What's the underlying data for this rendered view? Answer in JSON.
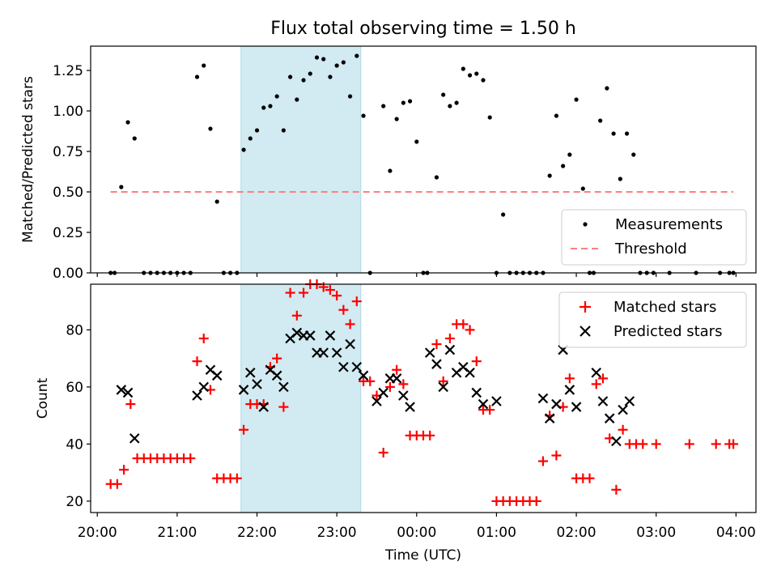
{
  "title": "Flux total observing time = 1.50 h",
  "colors": {
    "measurement": "#000000",
    "threshold": "#ff7f7f",
    "matched": "#ff0000",
    "predicted": "#000000",
    "shade": "#add8e6"
  },
  "chart_data": [
    {
      "type": "scatter",
      "ylabel": "Matched/Predicted stars",
      "ylim": [
        0,
        1.4
      ],
      "xlim": [
        "19:55",
        "04:15"
      ],
      "ytick_labels": [
        "0.00",
        "0.25",
        "0.50",
        "0.75",
        "1.00",
        "1.25"
      ],
      "ytick_values": [
        0,
        0.25,
        0.5,
        0.75,
        1.0,
        1.25
      ],
      "shaded_span": [
        "21:48",
        "23:18"
      ],
      "legend": {
        "placement": "lower-right",
        "entries": [
          "Measurements",
          "Threshold"
        ]
      },
      "threshold": {
        "name": "Threshold",
        "value": 0.5,
        "x_range": [
          "20:10",
          "03:58"
        ]
      },
      "series": [
        {
          "name": "Measurements",
          "marker": "dot",
          "points": [
            [
              "20:10",
              0
            ],
            [
              "20:13",
              0
            ],
            [
              "20:18",
              0.53
            ],
            [
              "20:23",
              0.93
            ],
            [
              "20:28",
              0.83
            ],
            [
              "20:35",
              0
            ],
            [
              "20:40",
              0
            ],
            [
              "20:45",
              0
            ],
            [
              "20:50",
              0
            ],
            [
              "20:55",
              0
            ],
            [
              "21:00",
              0
            ],
            [
              "21:05",
              0
            ],
            [
              "21:10",
              0
            ],
            [
              "21:15",
              1.21
            ],
            [
              "21:20",
              1.28
            ],
            [
              "21:25",
              0.89
            ],
            [
              "21:30",
              0.44
            ],
            [
              "21:35",
              0
            ],
            [
              "21:40",
              0
            ],
            [
              "21:45",
              0
            ],
            [
              "21:50",
              0.76
            ],
            [
              "21:55",
              0.83
            ],
            [
              "22:00",
              0.88
            ],
            [
              "22:05",
              1.02
            ],
            [
              "22:10",
              1.03
            ],
            [
              "22:15",
              1.09
            ],
            [
              "22:20",
              0.88
            ],
            [
              "22:25",
              1.21
            ],
            [
              "22:30",
              1.07
            ],
            [
              "22:35",
              1.19
            ],
            [
              "22:40",
              1.23
            ],
            [
              "22:45",
              1.33
            ],
            [
              "22:50",
              1.32
            ],
            [
              "22:55",
              1.21
            ],
            [
              "23:00",
              1.28
            ],
            [
              "23:05",
              1.3
            ],
            [
              "23:10",
              1.09
            ],
            [
              "23:15",
              1.34
            ],
            [
              "23:20",
              0.97
            ],
            [
              "23:25",
              0
            ],
            [
              "23:35",
              1.03
            ],
            [
              "23:40",
              0.63
            ],
            [
              "23:45",
              0.95
            ],
            [
              "23:50",
              1.05
            ],
            [
              "23:55",
              1.06
            ],
            [
              "00:00",
              0.81
            ],
            [
              "00:05",
              0
            ],
            [
              "00:08",
              0
            ],
            [
              "00:15",
              0.59
            ],
            [
              "00:20",
              1.1
            ],
            [
              "00:25",
              1.03
            ],
            [
              "00:30",
              1.05
            ],
            [
              "00:35",
              1.26
            ],
            [
              "00:40",
              1.22
            ],
            [
              "00:45",
              1.23
            ],
            [
              "00:50",
              1.19
            ],
            [
              "00:55",
              0.96
            ],
            [
              "01:00",
              0
            ],
            [
              "01:05",
              0.36
            ],
            [
              "01:10",
              0
            ],
            [
              "01:15",
              0
            ],
            [
              "01:20",
              0
            ],
            [
              "01:25",
              0
            ],
            [
              "01:30",
              0
            ],
            [
              "01:35",
              0
            ],
            [
              "01:40",
              0.6
            ],
            [
              "01:45",
              0.97
            ],
            [
              "01:50",
              0.66
            ],
            [
              "01:55",
              0.73
            ],
            [
              "02:00",
              1.07
            ],
            [
              "02:05",
              0.52
            ],
            [
              "02:10",
              0
            ],
            [
              "02:13",
              0
            ],
            [
              "02:18",
              0.94
            ],
            [
              "02:23",
              1.14
            ],
            [
              "02:28",
              0.86
            ],
            [
              "02:33",
              0.58
            ],
            [
              "02:38",
              0.86
            ],
            [
              "02:43",
              0.73
            ],
            [
              "02:48",
              0
            ],
            [
              "02:53",
              0
            ],
            [
              "02:58",
              0
            ],
            [
              "03:10",
              0
            ],
            [
              "03:30",
              0
            ],
            [
              "03:48",
              0
            ],
            [
              "03:55",
              0
            ],
            [
              "03:58",
              0
            ]
          ]
        }
      ]
    },
    {
      "type": "scatter",
      "ylabel": "Count",
      "xlabel": "Time (UTC)",
      "ylim": [
        16,
        96
      ],
      "xlim": [
        "19:55",
        "04:15"
      ],
      "ytick_labels": [
        "20",
        "40",
        "60",
        "80"
      ],
      "ytick_values": [
        20,
        40,
        60,
        80
      ],
      "xtick_labels": [
        "20:00",
        "21:00",
        "22:00",
        "23:00",
        "00:00",
        "01:00",
        "02:00",
        "03:00",
        "04:00"
      ],
      "xtick_values": [
        "20:00",
        "21:00",
        "22:00",
        "23:00",
        "00:00",
        "01:00",
        "02:00",
        "03:00",
        "04:00"
      ],
      "shaded_span": [
        "21:48",
        "23:18"
      ],
      "legend": {
        "placement": "top-right",
        "entries": [
          "Matched stars",
          "Predicted stars"
        ]
      },
      "series": [
        {
          "name": "Matched stars",
          "marker": "plus",
          "points": [
            [
              "20:10",
              26
            ],
            [
              "20:15",
              26
            ],
            [
              "20:20",
              31
            ],
            [
              "20:25",
              54
            ],
            [
              "20:30",
              35
            ],
            [
              "20:35",
              35
            ],
            [
              "20:40",
              35
            ],
            [
              "20:45",
              35
            ],
            [
              "20:50",
              35
            ],
            [
              "20:55",
              35
            ],
            [
              "21:00",
              35
            ],
            [
              "21:05",
              35
            ],
            [
              "21:10",
              35
            ],
            [
              "21:15",
              69
            ],
            [
              "21:20",
              77
            ],
            [
              "21:25",
              59
            ],
            [
              "21:30",
              28
            ],
            [
              "21:35",
              28
            ],
            [
              "21:40",
              28
            ],
            [
              "21:45",
              28
            ],
            [
              "21:50",
              45
            ],
            [
              "21:55",
              54
            ],
            [
              "22:00",
              54
            ],
            [
              "22:05",
              54
            ],
            [
              "22:10",
              67
            ],
            [
              "22:15",
              70
            ],
            [
              "22:20",
              53
            ],
            [
              "22:25",
              93
            ],
            [
              "22:30",
              85
            ],
            [
              "22:35",
              93
            ],
            [
              "22:40",
              96
            ],
            [
              "22:45",
              96
            ],
            [
              "22:50",
              95
            ],
            [
              "22:55",
              94
            ],
            [
              "23:00",
              92
            ],
            [
              "23:05",
              87
            ],
            [
              "23:10",
              82
            ],
            [
              "23:15",
              90
            ],
            [
              "23:20",
              62
            ],
            [
              "23:25",
              62
            ],
            [
              "23:30",
              57
            ],
            [
              "23:35",
              37
            ],
            [
              "23:40",
              60
            ],
            [
              "23:45",
              66
            ],
            [
              "23:50",
              61
            ],
            [
              "23:55",
              43
            ],
            [
              "00:00",
              43
            ],
            [
              "00:05",
              43
            ],
            [
              "00:10",
              43
            ],
            [
              "00:15",
              75
            ],
            [
              "00:20",
              62
            ],
            [
              "00:25",
              77
            ],
            [
              "00:30",
              82
            ],
            [
              "00:35",
              82
            ],
            [
              "00:40",
              80
            ],
            [
              "00:45",
              69
            ],
            [
              "00:50",
              52
            ],
            [
              "00:55",
              52
            ],
            [
              "01:00",
              20
            ],
            [
              "01:05",
              20
            ],
            [
              "01:10",
              20
            ],
            [
              "01:15",
              20
            ],
            [
              "01:20",
              20
            ],
            [
              "01:25",
              20
            ],
            [
              "01:30",
              20
            ],
            [
              "01:35",
              34
            ],
            [
              "01:40",
              50
            ],
            [
              "01:45",
              36
            ],
            [
              "01:50",
              53
            ],
            [
              "01:55",
              63
            ],
            [
              "02:00",
              28
            ],
            [
              "02:05",
              28
            ],
            [
              "02:10",
              28
            ],
            [
              "02:15",
              61
            ],
            [
              "02:20",
              63
            ],
            [
              "02:25",
              42
            ],
            [
              "02:30",
              24
            ],
            [
              "02:35",
              45
            ],
            [
              "02:40",
              40
            ],
            [
              "02:45",
              40
            ],
            [
              "02:50",
              40
            ],
            [
              "03:00",
              40
            ],
            [
              "03:25",
              40
            ],
            [
              "03:45",
              40
            ],
            [
              "03:55",
              40
            ],
            [
              "03:58",
              40
            ]
          ]
        },
        {
          "name": "Predicted stars",
          "marker": "x",
          "points": [
            [
              "20:18",
              59
            ],
            [
              "20:23",
              58
            ],
            [
              "20:28",
              42
            ],
            [
              "21:15",
              57
            ],
            [
              "21:20",
              60
            ],
            [
              "21:25",
              66
            ],
            [
              "21:30",
              64
            ],
            [
              "21:50",
              59
            ],
            [
              "21:55",
              65
            ],
            [
              "22:00",
              61
            ],
            [
              "22:05",
              53
            ],
            [
              "22:10",
              66
            ],
            [
              "22:15",
              64
            ],
            [
              "22:20",
              60
            ],
            [
              "22:25",
              77
            ],
            [
              "22:30",
              79
            ],
            [
              "22:35",
              78
            ],
            [
              "22:40",
              78
            ],
            [
              "22:45",
              72
            ],
            [
              "22:50",
              72
            ],
            [
              "22:55",
              78
            ],
            [
              "23:00",
              72
            ],
            [
              "23:05",
              67
            ],
            [
              "23:10",
              75
            ],
            [
              "23:15",
              67
            ],
            [
              "23:20",
              64
            ],
            [
              "23:30",
              55
            ],
            [
              "23:35",
              58
            ],
            [
              "23:40",
              63
            ],
            [
              "23:45",
              63
            ],
            [
              "23:50",
              57
            ],
            [
              "23:55",
              53
            ],
            [
              "00:10",
              72
            ],
            [
              "00:15",
              68
            ],
            [
              "00:20",
              60
            ],
            [
              "00:25",
              73
            ],
            [
              "00:30",
              65
            ],
            [
              "00:35",
              67
            ],
            [
              "00:40",
              65
            ],
            [
              "00:45",
              58
            ],
            [
              "00:50",
              54
            ],
            [
              "01:00",
              55
            ],
            [
              "01:35",
              56
            ],
            [
              "01:40",
              49
            ],
            [
              "01:45",
              54
            ],
            [
              "01:50",
              73
            ],
            [
              "01:55",
              59
            ],
            [
              "02:00",
              53
            ],
            [
              "02:15",
              65
            ],
            [
              "02:20",
              55
            ],
            [
              "02:25",
              49
            ],
            [
              "02:30",
              41
            ],
            [
              "02:35",
              52
            ],
            [
              "02:40",
              55
            ]
          ]
        }
      ]
    }
  ]
}
